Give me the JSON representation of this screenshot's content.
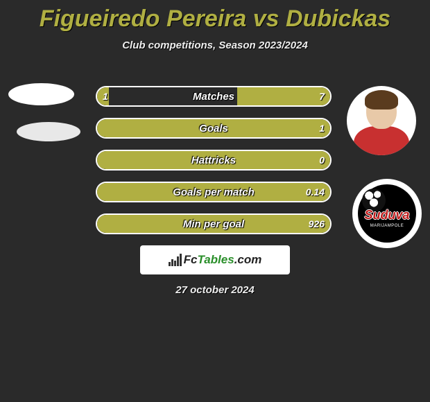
{
  "title": "Figueiredo Pereira vs Dubickas",
  "subtitle": "Club competitions, Season 2023/2024",
  "date_text": "27 october 2024",
  "brand": {
    "pre": "Fc",
    "accent": "Tables",
    "post": ".com"
  },
  "colors": {
    "bg": "#2a2a2a",
    "accent": "#b0af42",
    "bar_border": "#ffffff",
    "text": "#ffffff"
  },
  "club_badge": {
    "top": "Suduva",
    "bottom": "MARIJAMPOLE"
  },
  "bars": [
    {
      "label": "Matches",
      "left_val": "1",
      "right_val": "7",
      "left_pct": 5,
      "right_pct": 40
    },
    {
      "label": "Goals",
      "left_val": "",
      "right_val": "1",
      "left_pct": 0,
      "right_pct": 100
    },
    {
      "label": "Hattricks",
      "left_val": "",
      "right_val": "0",
      "left_pct": 0,
      "right_pct": 100
    },
    {
      "label": "Goals per match",
      "left_val": "",
      "right_val": "0.14",
      "left_pct": 0,
      "right_pct": 100
    },
    {
      "label": "Min per goal",
      "left_val": "",
      "right_val": "926",
      "left_pct": 0,
      "right_pct": 100
    }
  ]
}
